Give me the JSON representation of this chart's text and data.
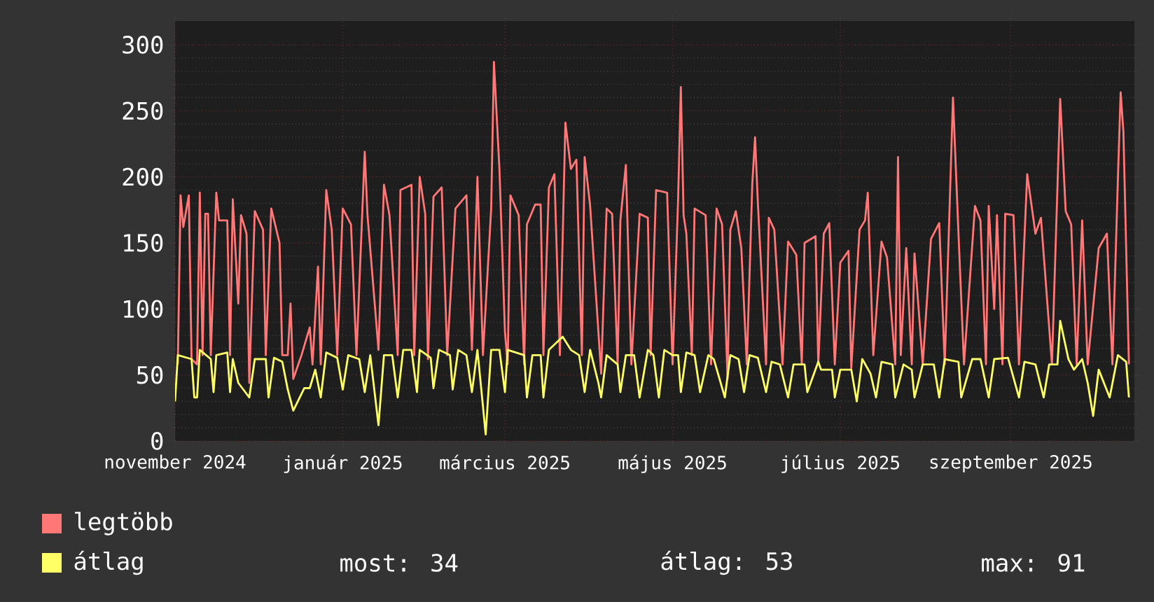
{
  "chart_data": {
    "type": "line",
    "xlim": [
      "2024-11-01",
      "2025-10-16"
    ],
    "xticks": [
      {
        "value": "2024-11-01",
        "label": "november 2024"
      },
      {
        "value": "2025-01-01",
        "label": "január 2025"
      },
      {
        "value": "2025-03-01",
        "label": "március 2025"
      },
      {
        "value": "2025-05-01",
        "label": "május 2025"
      },
      {
        "value": "2025-07-01",
        "label": "július 2025"
      },
      {
        "value": "2025-09-01",
        "label": "szeptember 2025"
      }
    ],
    "ylim": [
      0,
      318
    ],
    "yticks": [
      0,
      50,
      100,
      150,
      200,
      250,
      300
    ],
    "grid": true,
    "legend": "bottom",
    "annotations": [
      "most: 34",
      "átlag: 53",
      "max: 91"
    ],
    "series": [
      {
        "name": "legtöbb",
        "color": "#ff7777",
        "x": [
          "2024-11-02",
          "2024-11-03",
          "2024-11-04",
          "2024-11-06",
          "2024-11-07",
          "2024-11-09",
          "2024-11-10",
          "2024-11-11",
          "2024-11-12",
          "2024-11-13",
          "2024-11-14",
          "2024-11-16",
          "2024-11-17",
          "2024-11-20",
          "2024-11-21",
          "2024-11-22",
          "2024-11-24",
          "2024-11-25",
          "2024-11-27",
          "2024-11-28",
          "2024-11-30",
          "2024-12-03",
          "2024-12-04",
          "2024-12-06",
          "2024-12-09",
          "2024-12-10",
          "2024-12-12",
          "2024-12-13",
          "2024-12-14",
          "2024-12-17",
          "2024-12-20",
          "2024-12-21",
          "2024-12-23",
          "2024-12-24",
          "2024-12-26",
          "2024-12-28",
          "2024-12-30",
          "2025-01-01",
          "2025-01-04",
          "2025-01-06",
          "2025-01-09",
          "2025-01-10",
          "2025-01-14",
          "2025-01-16",
          "2025-01-18",
          "2025-01-21",
          "2025-01-22",
          "2025-01-26",
          "2025-01-27",
          "2025-01-29",
          "2025-01-31",
          "2025-02-01",
          "2025-02-03",
          "2025-02-06",
          "2025-02-08",
          "2025-02-11",
          "2025-02-15",
          "2025-02-17",
          "2025-02-19",
          "2025-02-21",
          "2025-02-24",
          "2025-02-25",
          "2025-02-27",
          "2025-03-01",
          "2025-03-02",
          "2025-03-03",
          "2025-03-06",
          "2025-03-08",
          "2025-03-09",
          "2025-03-12",
          "2025-03-14",
          "2025-03-15",
          "2025-03-17",
          "2025-03-19",
          "2025-03-21",
          "2025-03-23",
          "2025-03-25",
          "2025-03-27",
          "2025-03-29",
          "2025-03-30",
          "2025-04-01",
          "2025-04-05",
          "2025-04-07",
          "2025-04-09",
          "2025-04-11",
          "2025-04-12",
          "2025-04-14",
          "2025-04-16",
          "2025-04-19",
          "2025-04-22",
          "2025-04-23",
          "2025-04-25",
          "2025-04-29",
          "2025-05-01",
          "2025-05-03",
          "2025-05-04",
          "2025-05-05",
          "2025-05-06",
          "2025-05-08",
          "2025-05-09",
          "2025-05-13",
          "2025-05-15",
          "2025-05-17",
          "2025-05-19",
          "2025-05-21",
          "2025-05-22",
          "2025-05-24",
          "2025-05-26",
          "2025-05-28",
          "2025-05-30",
          "2025-05-31",
          "2025-06-01",
          "2025-06-04",
          "2025-06-05",
          "2025-06-07",
          "2025-06-10",
          "2025-06-12",
          "2025-06-15",
          "2025-06-17",
          "2025-06-18",
          "2025-06-22",
          "2025-06-23",
          "2025-06-25",
          "2025-06-27",
          "2025-06-29",
          "2025-07-01",
          "2025-07-04",
          "2025-07-05",
          "2025-07-08",
          "2025-07-10",
          "2025-07-11",
          "2025-07-13",
          "2025-07-16",
          "2025-07-18",
          "2025-07-21",
          "2025-07-22",
          "2025-07-23",
          "2025-07-25",
          "2025-07-27",
          "2025-07-28",
          "2025-07-31",
          "2025-08-03",
          "2025-08-06",
          "2025-08-08",
          "2025-08-11",
          "2025-08-13",
          "2025-08-15",
          "2025-08-19",
          "2025-08-21",
          "2025-08-23",
          "2025-08-24",
          "2025-08-26",
          "2025-08-27",
          "2025-08-29",
          "2025-08-30",
          "2025-09-02",
          "2025-09-04",
          "2025-09-07",
          "2025-09-10",
          "2025-09-12",
          "2025-09-16",
          "2025-09-19",
          "2025-09-21",
          "2025-09-23",
          "2025-09-25",
          "2025-09-27",
          "2025-09-29",
          "2025-10-03",
          "2025-10-06",
          "2025-10-08",
          "2025-10-10",
          "2025-10-11",
          "2025-10-12",
          "2025-10-14"
        ],
        "values": [
          58,
          186,
          162,
          186,
          62,
          58,
          188,
          65,
          172,
          172,
          65,
          188,
          167,
          167,
          65,
          183,
          104,
          171,
          157,
          44,
          174,
          160,
          65,
          176,
          150,
          65,
          65,
          104,
          47,
          65,
          86,
          58,
          132,
          58,
          190,
          160,
          65,
          176,
          164,
          65,
          219,
          171,
          69,
          194,
          171,
          65,
          190,
          194,
          65,
          200,
          172,
          62,
          185,
          192,
          65,
          176,
          186,
          69,
          200,
          65,
          176,
          287,
          206,
          83,
          58,
          186,
          171,
          58,
          164,
          179,
          179,
          65,
          192,
          202,
          65,
          241,
          206,
          213,
          65,
          215,
          178,
          51,
          176,
          172,
          58,
          167,
          209,
          58,
          172,
          169,
          65,
          190,
          188,
          58,
          183,
          268,
          171,
          157,
          65,
          176,
          171,
          58,
          176,
          164,
          47,
          160,
          174,
          146,
          58,
          195,
          230,
          181,
          58,
          169,
          160,
          58,
          151,
          141,
          58,
          150,
          155,
          58,
          157,
          165,
          58,
          135,
          144,
          55,
          160,
          167,
          188,
          65,
          151,
          139,
          58,
          215,
          65,
          146,
          58,
          142,
          58,
          153,
          165,
          58,
          260,
          157,
          58,
          178,
          167,
          58,
          178,
          100,
          171,
          58,
          172,
          171,
          58,
          202,
          157,
          169,
          58,
          259,
          174,
          164,
          58,
          167,
          58,
          146,
          157,
          58,
          199,
          264,
          234,
          58
        ]
      },
      {
        "name": "átlag",
        "color": "#ffff66",
        "x": [
          "2024-11-01",
          "2024-11-02",
          "2024-11-07",
          "2024-11-08",
          "2024-11-09",
          "2024-11-10",
          "2024-11-14",
          "2024-11-15",
          "2024-11-16",
          "2024-11-20",
          "2024-11-21",
          "2024-11-22",
          "2024-11-24",
          "2024-11-28",
          "2024-11-30",
          "2024-12-04",
          "2024-12-05",
          "2024-12-07",
          "2024-12-10",
          "2024-12-12",
          "2024-12-14",
          "2024-12-18",
          "2024-12-20",
          "2024-12-22",
          "2024-12-24",
          "2024-12-26",
          "2024-12-30",
          "2025-01-01",
          "2025-01-03",
          "2025-01-07",
          "2025-01-09",
          "2025-01-11",
          "2025-01-14",
          "2025-01-16",
          "2025-01-19",
          "2025-01-21",
          "2025-01-23",
          "2025-01-26",
          "2025-01-28",
          "2025-01-29",
          "2025-02-02",
          "2025-02-03",
          "2025-02-05",
          "2025-02-09",
          "2025-02-10",
          "2025-02-12",
          "2025-02-15",
          "2025-02-17",
          "2025-02-19",
          "2025-02-22",
          "2025-02-24",
          "2025-02-27",
          "2025-03-01",
          "2025-03-02",
          "2025-03-08",
          "2025-03-09",
          "2025-03-11",
          "2025-03-14",
          "2025-03-15",
          "2025-03-17",
          "2025-03-22",
          "2025-03-25",
          "2025-03-28",
          "2025-03-30",
          "2025-04-01",
          "2025-04-04",
          "2025-04-05",
          "2025-04-07",
          "2025-04-11",
          "2025-04-12",
          "2025-04-14",
          "2025-04-17",
          "2025-04-19",
          "2025-04-22",
          "2025-04-24",
          "2025-04-26",
          "2025-04-28",
          "2025-05-01",
          "2025-05-03",
          "2025-05-04",
          "2025-05-06",
          "2025-05-09",
          "2025-05-11",
          "2025-05-14",
          "2025-05-16",
          "2025-05-20",
          "2025-05-22",
          "2025-05-25",
          "2025-05-27",
          "2025-05-29",
          "2025-06-01",
          "2025-06-04",
          "2025-06-06",
          "2025-06-09",
          "2025-06-12",
          "2025-06-14",
          "2025-06-18",
          "2025-06-19",
          "2025-06-23",
          "2025-06-24",
          "2025-06-28",
          "2025-06-29",
          "2025-07-01",
          "2025-07-05",
          "2025-07-07",
          "2025-07-09",
          "2025-07-12",
          "2025-07-14",
          "2025-07-16",
          "2025-07-20",
          "2025-07-21",
          "2025-07-24",
          "2025-07-27",
          "2025-07-28",
          "2025-07-31",
          "2025-08-04",
          "2025-08-06",
          "2025-08-08",
          "2025-08-13",
          "2025-08-14",
          "2025-08-18",
          "2025-08-21",
          "2025-08-24",
          "2025-08-26",
          "2025-08-31",
          "2025-09-04",
          "2025-09-06",
          "2025-09-10",
          "2025-09-13",
          "2025-09-15",
          "2025-09-18",
          "2025-09-19",
          "2025-09-22",
          "2025-09-24",
          "2025-09-27",
          "2025-09-29",
          "2025-10-01",
          "2025-10-03",
          "2025-10-07",
          "2025-10-10",
          "2025-10-13",
          "2025-10-14"
        ],
        "values": [
          30,
          65,
          62,
          33,
          33,
          69,
          62,
          37,
          65,
          67,
          37,
          62,
          44,
          33,
          62,
          62,
          33,
          63,
          60,
          39,
          23,
          40,
          40,
          54,
          33,
          67,
          63,
          39,
          65,
          62,
          37,
          65,
          12,
          65,
          65,
          33,
          69,
          69,
          37,
          69,
          63,
          40,
          69,
          65,
          39,
          69,
          65,
          37,
          69,
          5,
          69,
          69,
          37,
          69,
          65,
          33,
          65,
          65,
          33,
          69,
          79,
          69,
          65,
          37,
          69,
          44,
          33,
          65,
          58,
          37,
          65,
          65,
          33,
          69,
          65,
          33,
          69,
          65,
          65,
          37,
          67,
          65,
          37,
          65,
          62,
          33,
          65,
          62,
          37,
          65,
          63,
          37,
          60,
          58,
          33,
          58,
          58,
          37,
          60,
          54,
          54,
          33,
          54,
          54,
          30,
          62,
          51,
          33,
          60,
          58,
          33,
          58,
          54,
          33,
          58,
          58,
          33,
          62,
          60,
          33,
          62,
          62,
          33,
          62,
          63,
          33,
          60,
          58,
          33,
          58,
          58,
          91,
          62,
          54,
          62,
          44,
          19,
          54,
          33,
          65,
          60,
          33
        ]
      }
    ]
  }
}
